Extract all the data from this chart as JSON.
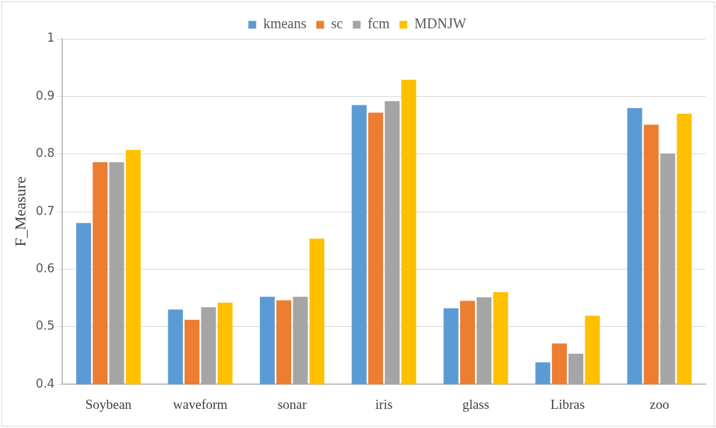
{
  "chart_data": {
    "type": "bar",
    "ylabel": "F_Measure",
    "categories": [
      "Soybean",
      "waveform",
      "sonar",
      "iris",
      "glass",
      "Libras",
      "zoo"
    ],
    "series": [
      {
        "name": "kmeans",
        "color": "#5b9bd5",
        "values": [
          0.68,
          0.53,
          0.552,
          0.885,
          0.532,
          0.438,
          0.88
        ]
      },
      {
        "name": "sc",
        "color": "#ed7d31",
        "values": [
          0.786,
          0.512,
          0.546,
          0.872,
          0.545,
          0.471,
          0.851
        ]
      },
      {
        "name": "fcm",
        "color": "#a5a5a5",
        "values": [
          0.786,
          0.534,
          0.552,
          0.892,
          0.551,
          0.453,
          0.801
        ]
      },
      {
        "name": "MDNJW",
        "color": "#ffc000",
        "values": [
          0.807,
          0.542,
          0.653,
          0.929,
          0.56,
          0.519,
          0.87
        ]
      }
    ],
    "ylim": [
      0.4,
      1
    ],
    "yticks": [
      0.4,
      0.5,
      0.6,
      0.7,
      0.8,
      0.9,
      1
    ],
    "grid": "y",
    "legend": "top"
  }
}
